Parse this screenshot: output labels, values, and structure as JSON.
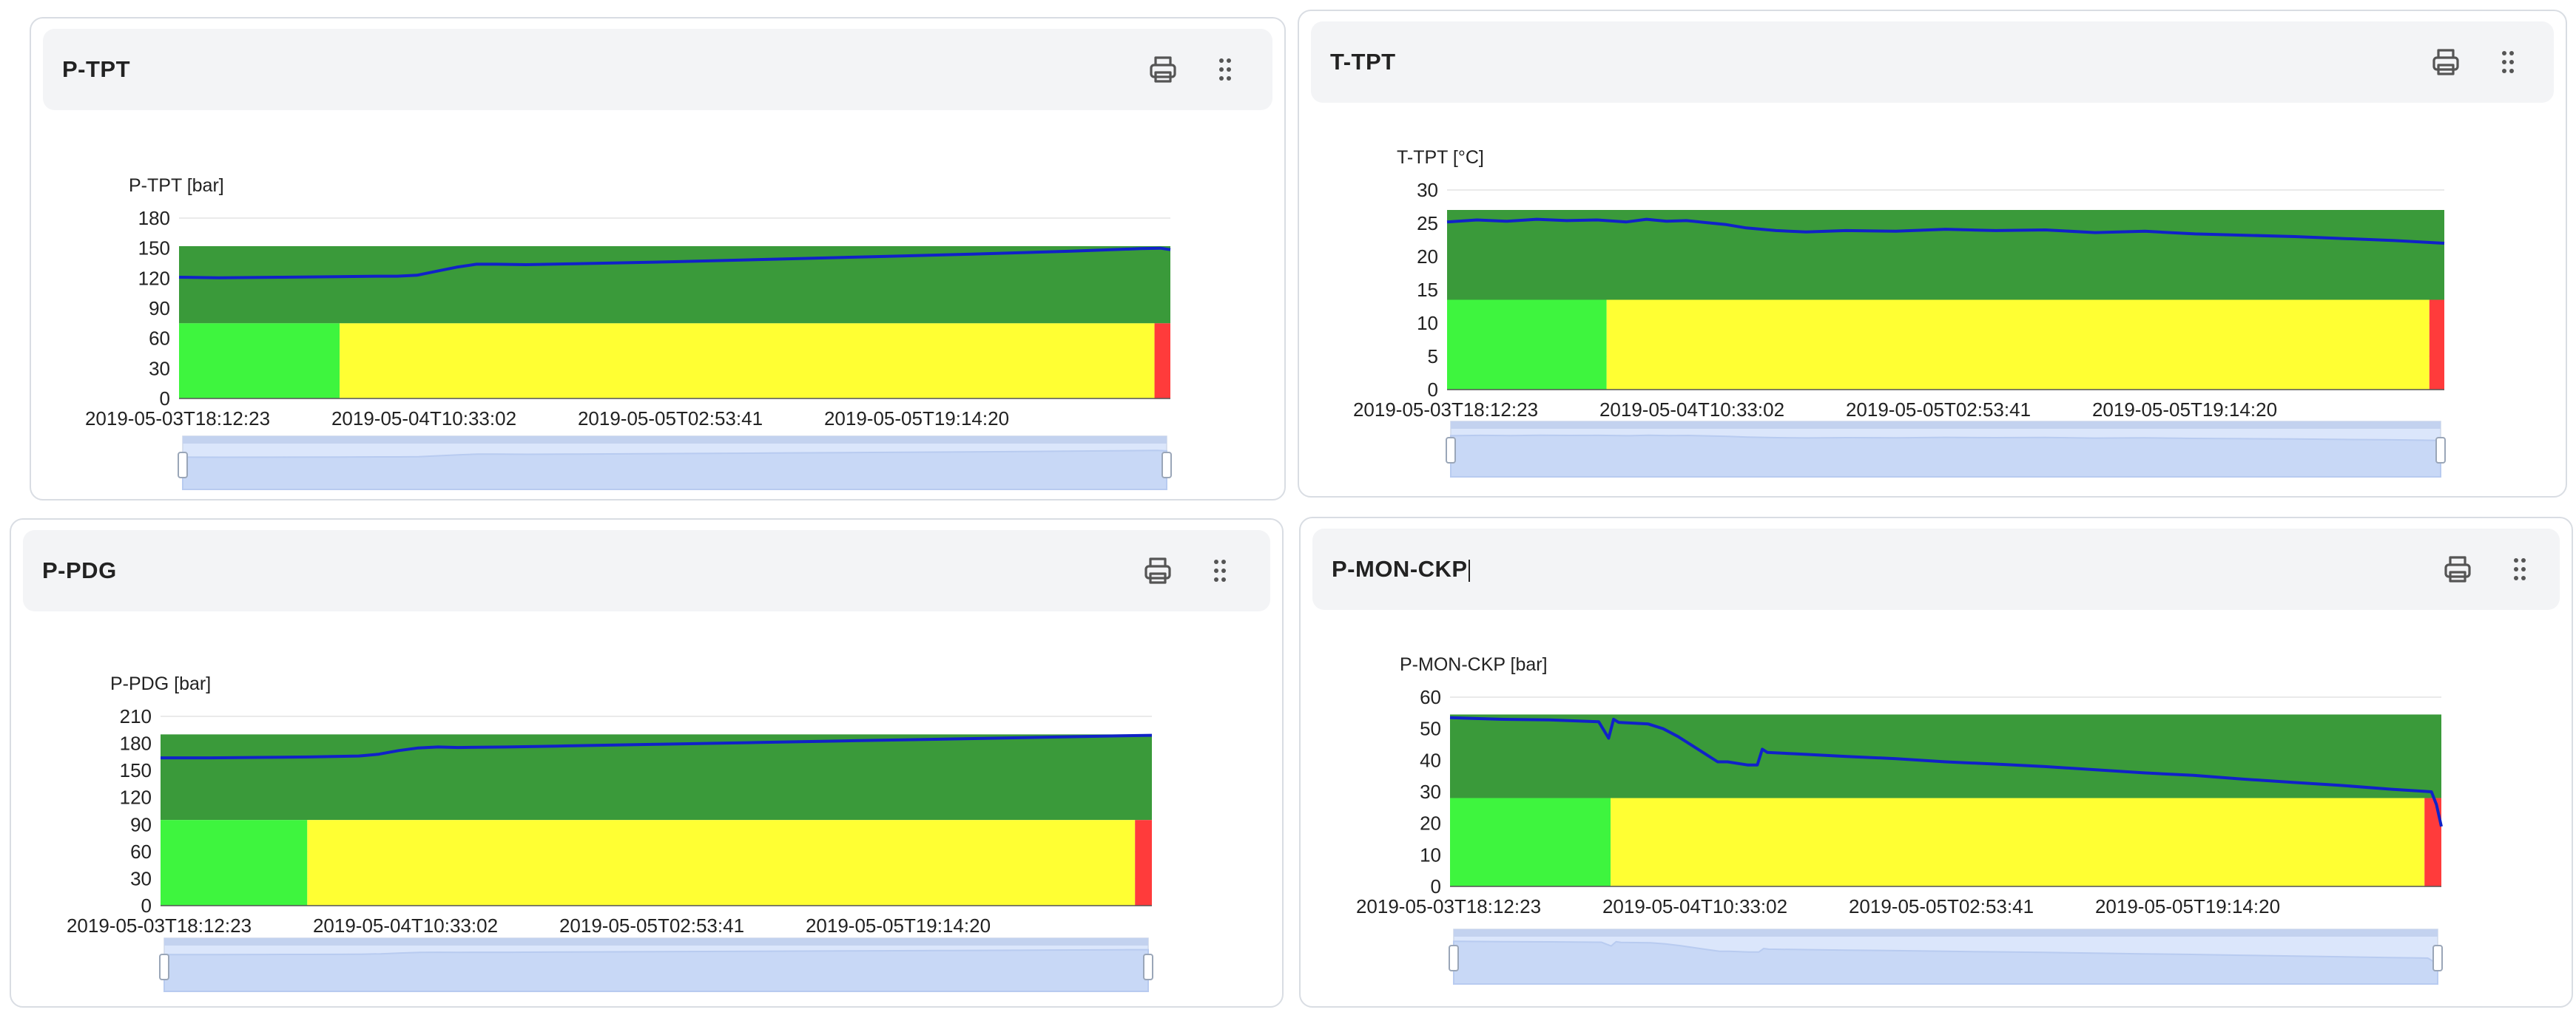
{
  "icons": {
    "print": "printer-icon",
    "drag": "drag-handle-icon"
  },
  "colors": {
    "good_band": "#3a9a3a",
    "low_band": "#3ef53e",
    "warn_band": "#ffff33",
    "alarm_band": "#ff3b3b",
    "line": "#1022c8",
    "slider_fill": "#dbe6fb",
    "slider_line": "#b8cbf0"
  },
  "panels": [
    {
      "title": "P-TPT",
      "chart_data": {
        "type": "line",
        "ylabel": "P-TPT [bar]",
        "ylim": [
          0,
          180
        ],
        "yticks": [
          0,
          30,
          60,
          90,
          120,
          150,
          180
        ],
        "xticks": [
          "2019-05-03T18:12:23",
          "2019-05-04T10:33:02",
          "2019-05-05T02:53:41",
          "2019-05-05T19:14:20"
        ],
        "x": [
          0,
          0.04,
          0.1,
          0.16,
          0.2,
          0.22,
          0.24,
          0.26,
          0.28,
          0.3,
          0.32,
          0.35,
          0.4,
          0.5,
          0.6,
          0.7,
          0.8,
          0.9,
          0.97,
          0.99,
          1.0
        ],
        "values": [
          121,
          120.5,
          121,
          121.5,
          122,
          122,
          123,
          127,
          131,
          134,
          134,
          133.5,
          134.5,
          136.5,
          139,
          141.5,
          144,
          147,
          149.5,
          150,
          148.5
        ],
        "bands": [
          {
            "ymin": 75,
            "ymax": 152,
            "x_from": 0,
            "x_to": 1,
            "color": "good_band"
          },
          {
            "ymin": 0,
            "ymax": 75,
            "x_from": 0,
            "x_to": 0.162,
            "color": "low_band"
          },
          {
            "ymin": 0,
            "ymax": 75,
            "x_from": 0.162,
            "x_to": 0.984,
            "color": "warn_band"
          },
          {
            "ymin": 0,
            "ymax": 75,
            "x_from": 0.984,
            "x_to": 1,
            "color": "alarm_band"
          }
        ]
      }
    },
    {
      "title": "T-TPT",
      "chart_data": {
        "type": "line",
        "ylabel": "T-TPT [°C]",
        "ylim": [
          0,
          30
        ],
        "yticks": [
          0,
          5,
          10,
          15,
          20,
          25,
          30
        ],
        "xticks": [
          "2019-05-03T18:12:23",
          "2019-05-04T10:33:02",
          "2019-05-05T02:53:41",
          "2019-05-05T19:14:20"
        ],
        "x": [
          0,
          0.03,
          0.06,
          0.09,
          0.12,
          0.15,
          0.18,
          0.2,
          0.22,
          0.24,
          0.26,
          0.28,
          0.3,
          0.33,
          0.36,
          0.4,
          0.45,
          0.5,
          0.55,
          0.6,
          0.65,
          0.7,
          0.75,
          0.8,
          0.85,
          0.9,
          0.95,
          1.0
        ],
        "values": [
          25.2,
          25.5,
          25.3,
          25.6,
          25.4,
          25.5,
          25.2,
          25.6,
          25.3,
          25.4,
          25.1,
          24.8,
          24.3,
          23.9,
          23.7,
          23.9,
          23.8,
          24.1,
          23.9,
          24.0,
          23.6,
          23.8,
          23.4,
          23.2,
          23.0,
          22.7,
          22.4,
          22.0
        ],
        "bands": [
          {
            "ymin": 13.5,
            "ymax": 27,
            "x_from": 0,
            "x_to": 1,
            "color": "good_band"
          },
          {
            "ymin": 0,
            "ymax": 13.5,
            "x_from": 0,
            "x_to": 0.16,
            "color": "low_band"
          },
          {
            "ymin": 0,
            "ymax": 13.5,
            "x_from": 0.16,
            "x_to": 0.985,
            "color": "warn_band"
          },
          {
            "ymin": 0,
            "ymax": 13.5,
            "x_from": 0.985,
            "x_to": 1,
            "color": "alarm_band"
          }
        ]
      }
    },
    {
      "title": "P-PDG",
      "chart_data": {
        "type": "line",
        "ylabel": "P-PDG [bar]",
        "ylim": [
          0,
          210
        ],
        "yticks": [
          0,
          30,
          60,
          90,
          120,
          150,
          180,
          210
        ],
        "xticks": [
          "2019-05-03T18:12:23",
          "2019-05-04T10:33:02",
          "2019-05-05T02:53:41",
          "2019-05-05T19:14:20"
        ],
        "x": [
          0,
          0.05,
          0.1,
          0.15,
          0.2,
          0.22,
          0.24,
          0.26,
          0.28,
          0.3,
          0.35,
          0.4,
          0.5,
          0.6,
          0.7,
          0.8,
          0.9,
          0.97,
          1.0
        ],
        "values": [
          164,
          164,
          164.5,
          165,
          166,
          168,
          172,
          175,
          176,
          175.5,
          176,
          177,
          179,
          181,
          183,
          185,
          187,
          188.5,
          189
        ],
        "bands": [
          {
            "ymin": 95,
            "ymax": 190,
            "x_from": 0,
            "x_to": 1,
            "color": "good_band"
          },
          {
            "ymin": 0,
            "ymax": 95,
            "x_from": 0,
            "x_to": 0.148,
            "color": "low_band"
          },
          {
            "ymin": 0,
            "ymax": 95,
            "x_from": 0.148,
            "x_to": 0.983,
            "color": "warn_band"
          },
          {
            "ymin": 0,
            "ymax": 95,
            "x_from": 0.983,
            "x_to": 1,
            "color": "alarm_band"
          }
        ]
      }
    },
    {
      "title": "P-MON-CKP",
      "chart_data": {
        "type": "line",
        "ylabel": "P-MON-CKP [bar]",
        "ylim": [
          0,
          60
        ],
        "yticks": [
          0,
          10,
          20,
          30,
          40,
          50,
          60
        ],
        "xticks": [
          "2019-05-03T18:12:23",
          "2019-05-04T10:33:02",
          "2019-05-05T02:53:41",
          "2019-05-05T19:14:20"
        ],
        "x": [
          0,
          0.05,
          0.1,
          0.15,
          0.16,
          0.165,
          0.17,
          0.2,
          0.215,
          0.23,
          0.245,
          0.26,
          0.27,
          0.28,
          0.3,
          0.31,
          0.315,
          0.32,
          0.35,
          0.4,
          0.45,
          0.5,
          0.55,
          0.6,
          0.65,
          0.7,
          0.75,
          0.8,
          0.85,
          0.9,
          0.95,
          0.98,
          0.99,
          0.995,
          1.0
        ],
        "values": [
          53.5,
          53,
          52.8,
          52.2,
          47,
          53,
          52,
          51.5,
          50,
          47.5,
          44.5,
          41.5,
          39.5,
          39.5,
          38.5,
          38.5,
          43.5,
          42.5,
          42,
          41.2,
          40.5,
          39.5,
          38.8,
          38,
          37,
          36,
          35.2,
          34,
          33,
          32,
          30.8,
          30.2,
          30,
          26,
          19
        ],
        "bands": [
          {
            "ymin": 28,
            "ymax": 54.5,
            "x_from": 0,
            "x_to": 1,
            "color": "good_band"
          },
          {
            "ymin": 0,
            "ymax": 28,
            "x_from": 0,
            "x_to": 0.162,
            "color": "low_band"
          },
          {
            "ymin": 0,
            "ymax": 28,
            "x_from": 0.162,
            "x_to": 0.983,
            "color": "warn_band"
          },
          {
            "ymin": 0,
            "ymax": 28,
            "x_from": 0.983,
            "x_to": 1,
            "color": "alarm_band"
          }
        ]
      }
    }
  ]
}
